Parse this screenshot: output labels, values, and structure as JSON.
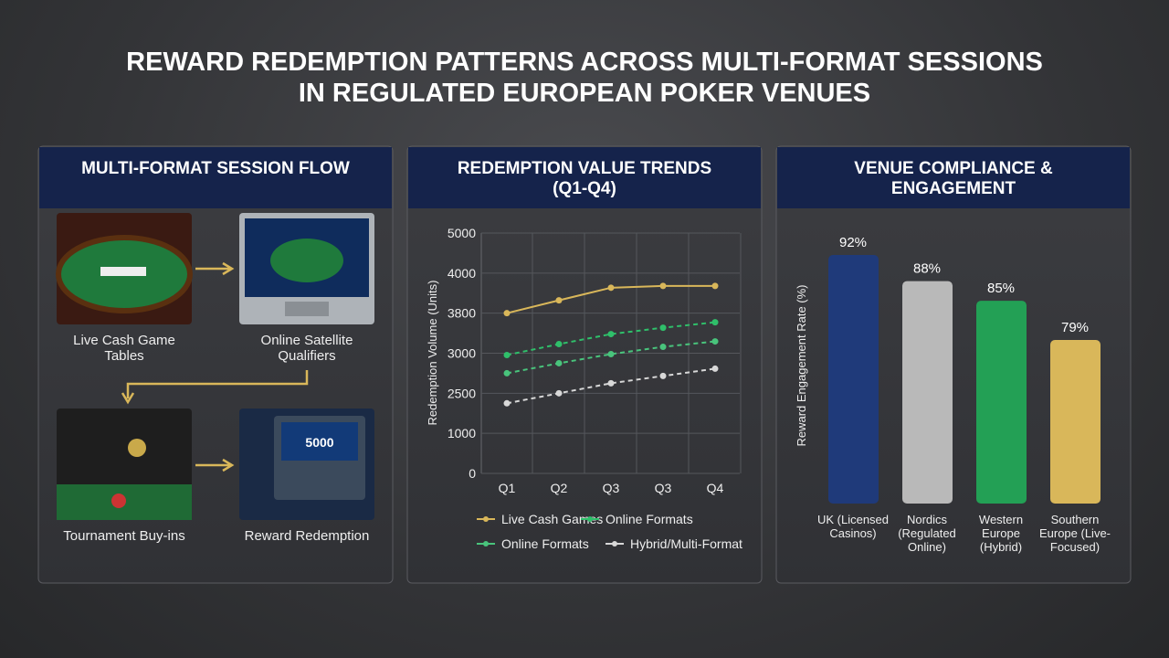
{
  "title": [
    "REWARD REDEMPTION PATTERNS ACROSS MULTI-FORMAT SESSIONS",
    "IN REGULATED EUROPEAN POKER VENUES"
  ],
  "flow": {
    "title": "MULTI-FORMAT SESSION FLOW",
    "steps": [
      {
        "label": "Live Cash Game Tables"
      },
      {
        "label": "Online Satellite Qualifiers"
      },
      {
        "label": "Tournament Buy-ins"
      },
      {
        "label": "Reward Redemption",
        "screen_text": "5000"
      }
    ]
  },
  "chart_data": [
    {
      "type": "line",
      "title": "REDEMPTION VALUE TRENDS (Q1-Q4)",
      "y_label": "Redemption Volume (Units)",
      "categories": [
        "Q1",
        "Q2",
        "Q3",
        "Q3",
        "Q4"
      ],
      "ylim": [
        0,
        5000
      ],
      "yticks": [
        0,
        1000,
        2500,
        3000,
        3800,
        4000,
        5000
      ],
      "grid": true,
      "series": [
        {
          "name": "Live Cash Games",
          "color": "#d9b75a",
          "values": [
            3800,
            3864,
            3927,
            3936,
            3936
          ]
        },
        {
          "name": "Online Formats",
          "color": "#2fbf6a",
          "values": [
            2977,
            3182,
            3382,
            3509,
            3618
          ]
        },
        {
          "name": "Online Formats",
          "color": "#49c47c",
          "values": [
            2750,
            2875,
            2989,
            3127,
            3236
          ]
        },
        {
          "name": "Hybrid/Multi-Format",
          "color": "#d8d8d8",
          "values": [
            2125,
            2500,
            2625,
            2716,
            2807
          ]
        }
      ]
    },
    {
      "type": "bar",
      "title": "VENUE COMPLIANCE & ENGAGEMENT",
      "y_label": "Reward Engagement Rate (%)",
      "categories": [
        "UK (Licensed Casinos)",
        "Nordics (Regulated Online)",
        "Western Europe (Hybrid)",
        "Southern Europe (Live-Focused)"
      ],
      "values": [
        92,
        88,
        85,
        79
      ],
      "value_labels": [
        "92%",
        "88%",
        "85%",
        "79%"
      ],
      "colors": [
        "#1f3a7a",
        "#b9b9b9",
        "#23a055",
        "#d9b75a"
      ],
      "ylim": [
        54,
        100
      ]
    }
  ]
}
